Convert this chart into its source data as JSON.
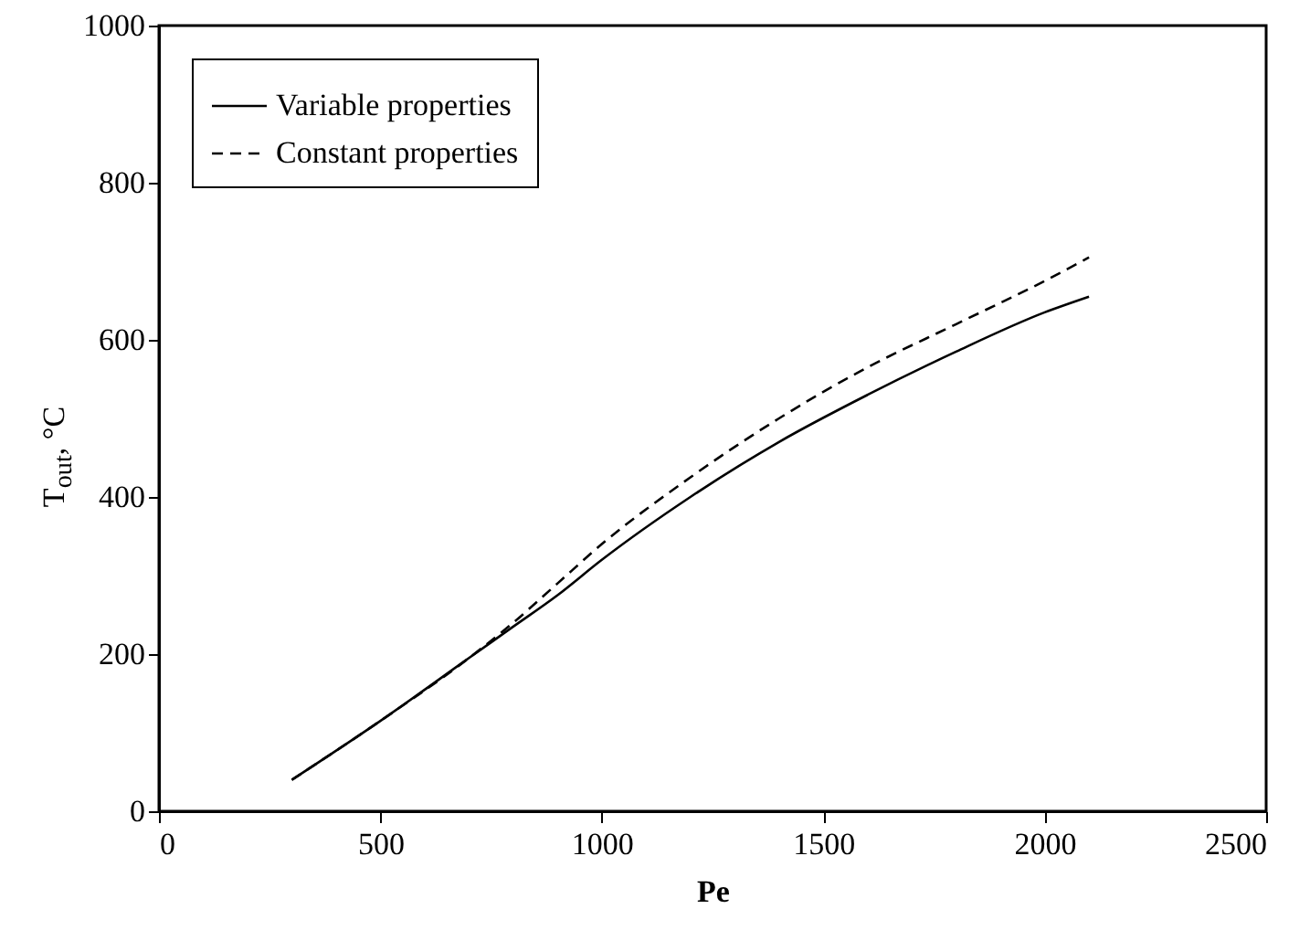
{
  "chart_data": {
    "type": "line",
    "xlabel": "Pe",
    "ylabel": "T$_{out}$, °C",
    "x": [
      300,
      500,
      700,
      800,
      900,
      1000,
      1200,
      1400,
      1600,
      1800,
      2000,
      2100
    ],
    "series": [
      {
        "name": "Variable properties",
        "color": "#000000",
        "line_style": "solid",
        "values": [
          40,
          115,
          195,
          235,
          275,
          320,
          400,
          470,
          530,
          585,
          635,
          655
        ]
      },
      {
        "name": "Constant properties",
        "color": "#000000",
        "line_style": "dashed",
        "values": [
          40,
          115,
          195,
          240,
          290,
          340,
          425,
          500,
          565,
          620,
          675,
          705
        ]
      }
    ],
    "xlim": [
      0,
      2500
    ],
    "xticks": [
      0,
      500,
      1000,
      1500,
      2000,
      2500
    ],
    "ylim": [
      0,
      1000
    ],
    "yticks": [
      0,
      200,
      400,
      600,
      800,
      1000
    ],
    "grid": false,
    "legend": "top left"
  }
}
